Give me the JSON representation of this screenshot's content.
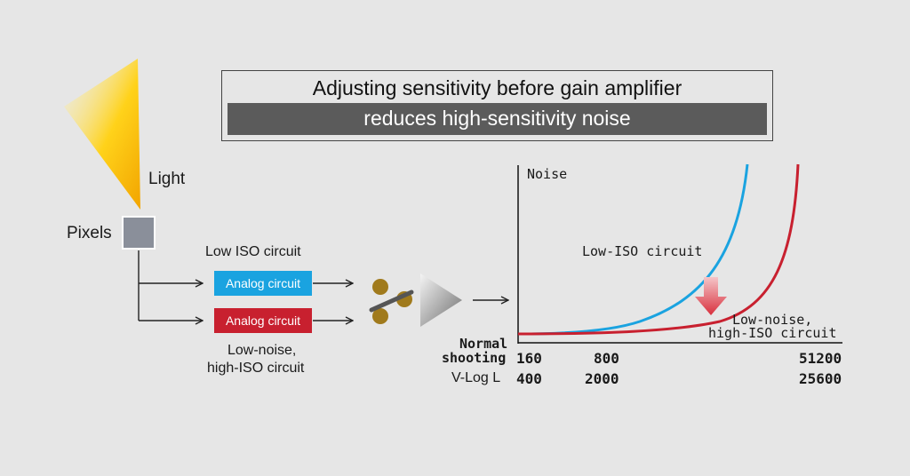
{
  "title": {
    "line1": "Adjusting sensitivity before gain amplifier",
    "line2": "reduces high-sensitivity noise"
  },
  "labels": {
    "light": "Light",
    "pixels": "Pixels",
    "low_iso_circuit": "Low ISO circuit",
    "analog_circuit_blue": "Analog circuit",
    "analog_circuit_red": "Analog circuit",
    "low_noise_line1": "Low-noise,",
    "low_noise_line2": "high-ISO circuit"
  },
  "chart": {
    "ylabel": "Noise",
    "curve_low_iso_label": "Low-ISO circuit",
    "curve_high_iso_label_line1": "Low-noise,",
    "curve_high_iso_label_line2": "high-ISO circuit",
    "row1_label_line1": "Normal",
    "row1_label_line2": "shooting",
    "row2_label": "V-Log L",
    "row1_ticks": [
      "160",
      "800",
      "51200"
    ],
    "row2_ticks": [
      "400",
      "2000",
      "25600"
    ]
  },
  "colors": {
    "background": "#e6e6e6",
    "blue_curve": "#1aa3e0",
    "red_curve": "#c8202f",
    "pixel": "#8a8f9a",
    "switch_dot": "#a07a1c"
  }
}
